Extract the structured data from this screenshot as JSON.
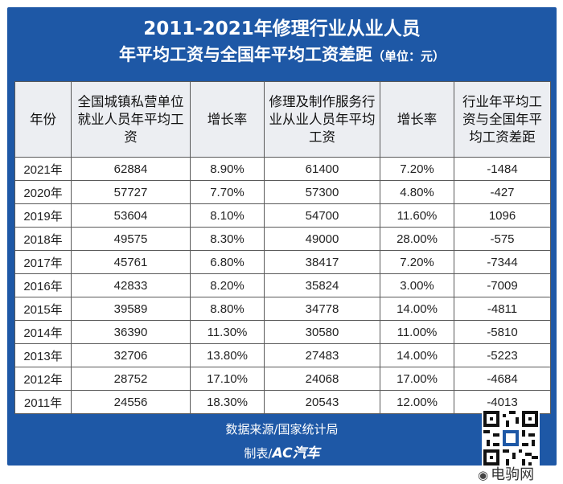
{
  "header": {
    "title_line1": "2011-2021年修理行业从业人员",
    "title_line2": "年平均工资与全国年平均工资差距",
    "unit": "（单位：元）"
  },
  "table": {
    "columns": [
      "年份",
      "全国城镇私营单位就业人员年平均工资",
      "增长率",
      "修理及制作服务行业从业人员年平均工资",
      "增长率",
      "行业年平均工资与全国年平均工资差距"
    ],
    "rows": [
      [
        "2021年",
        "62884",
        "8.90%",
        "61400",
        "7.20%",
        "-1484"
      ],
      [
        "2020年",
        "57727",
        "7.70%",
        "57300",
        "4.80%",
        "-427"
      ],
      [
        "2019年",
        "53604",
        "8.10%",
        "54700",
        "11.60%",
        "1096"
      ],
      [
        "2018年",
        "49575",
        "8.30%",
        "49000",
        "28.00%",
        "-575"
      ],
      [
        "2017年",
        "45761",
        "6.80%",
        "38417",
        "7.20%",
        "-7344"
      ],
      [
        "2016年",
        "42833",
        "8.20%",
        "35824",
        "3.00%",
        "-7009"
      ],
      [
        "2015年",
        "39589",
        "8.80%",
        "34778",
        "14.00%",
        "-4811"
      ],
      [
        "2014年",
        "36390",
        "11.30%",
        "30580",
        "11.00%",
        "-5810"
      ],
      [
        "2013年",
        "32706",
        "13.80%",
        "27483",
        "14.00%",
        "-5223"
      ],
      [
        "2012年",
        "28752",
        "17.10%",
        "24068",
        "17.00%",
        "-4684"
      ],
      [
        "2011年",
        "24556",
        "18.30%",
        "20543",
        "12.00%",
        "-4013"
      ]
    ]
  },
  "footer": {
    "source": "数据来源/国家统计局",
    "maker_prefix": "制表/",
    "maker_logo": "AC汽车"
  },
  "watermark": {
    "icon": "weibo-icon",
    "text": "电驹网"
  },
  "colors": {
    "panel_blue": "#1e58a6",
    "header_bg": "#eceef2"
  }
}
